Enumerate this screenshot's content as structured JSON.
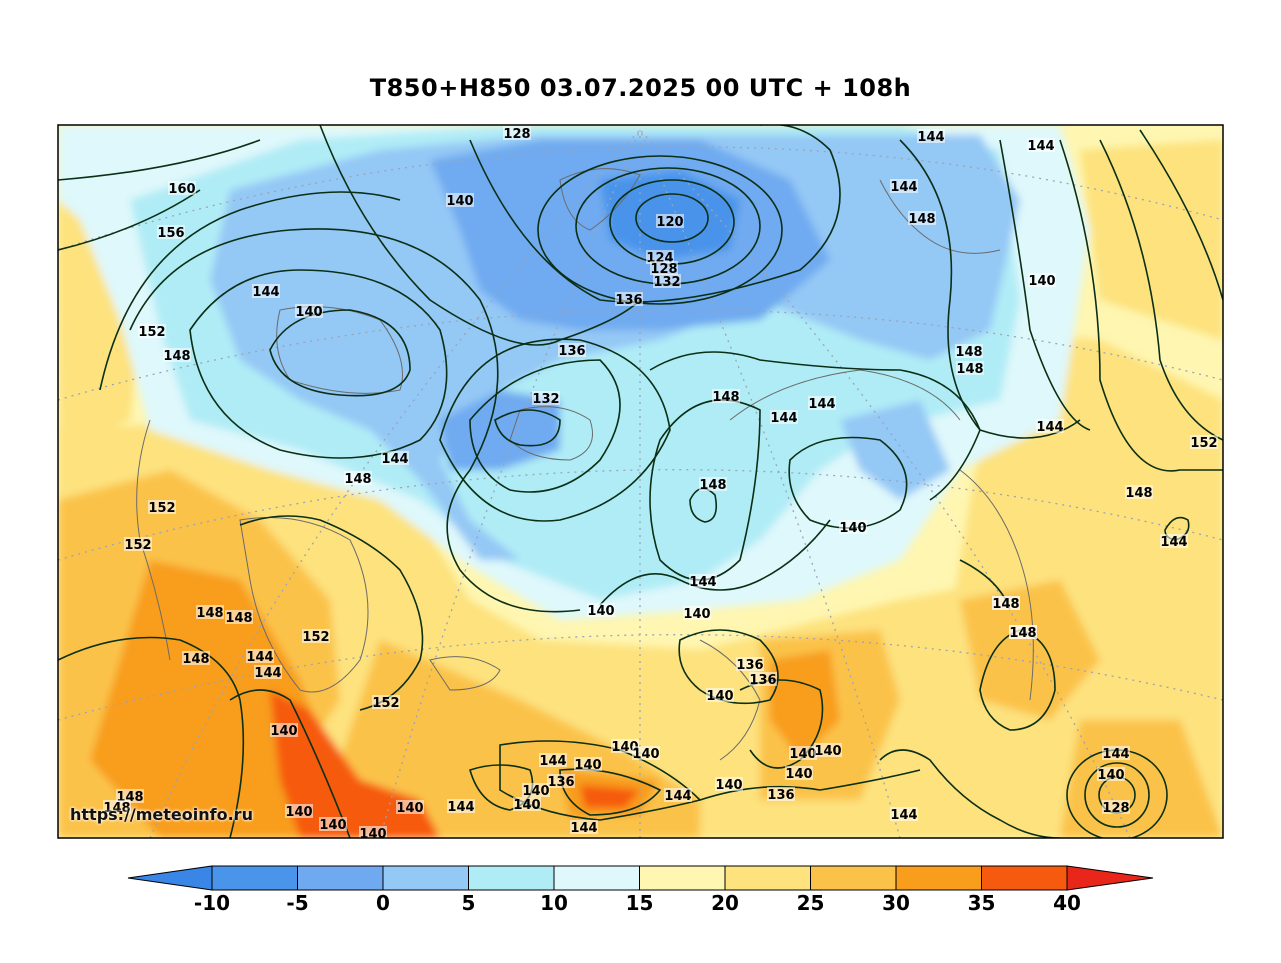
{
  "title": "T850+H850 03.07.2025 00 UTC + 108h",
  "watermark": "https://meteoinfo.ru",
  "colorbar": {
    "ticks": [
      "-10",
      "-5",
      "0",
      "5",
      "10",
      "15",
      "20",
      "25",
      "30",
      "35",
      "40"
    ],
    "colors": [
      "#4a94ea",
      "#6faaf0",
      "#94c8f5",
      "#b0ecf6",
      "#dff8fb",
      "#fef6b1",
      "#fde27e",
      "#fbc24a",
      "#f89d1c",
      "#f65a0f",
      "#ee2a12"
    ],
    "under_color": "#3a86e6",
    "over_color": "#e8261a"
  },
  "colors": {
    "contour": "#0a2f15",
    "coast": "#6b6b6b",
    "grid": "#9aa4b8"
  },
  "contour_labels": [
    {
      "text": "128"
    },
    {
      "text": "160"
    },
    {
      "text": "156"
    },
    {
      "text": "140"
    },
    {
      "text": "144"
    },
    {
      "text": "120"
    },
    {
      "text": "124"
    },
    {
      "text": "128"
    },
    {
      "text": "132"
    },
    {
      "text": "136"
    },
    {
      "text": "144"
    },
    {
      "text": "144"
    },
    {
      "text": "148"
    },
    {
      "text": "140"
    },
    {
      "text": "144"
    },
    {
      "text": "140"
    },
    {
      "text": "152"
    },
    {
      "text": "148"
    },
    {
      "text": "136"
    },
    {
      "text": "132"
    },
    {
      "text": "148"
    },
    {
      "text": "144"
    },
    {
      "text": "144"
    },
    {
      "text": "148"
    },
    {
      "text": "148"
    },
    {
      "text": "144"
    },
    {
      "text": "152"
    },
    {
      "text": "144"
    },
    {
      "text": "148"
    },
    {
      "text": "152"
    },
    {
      "text": "152"
    },
    {
      "text": "148"
    },
    {
      "text": "148"
    },
    {
      "text": "140"
    },
    {
      "text": "148"
    },
    {
      "text": "144"
    },
    {
      "text": "148"
    },
    {
      "text": "152"
    },
    {
      "text": "148"
    },
    {
      "text": "144"
    },
    {
      "text": "144"
    },
    {
      "text": "140"
    },
    {
      "text": "140"
    },
    {
      "text": "136"
    },
    {
      "text": "136"
    },
    {
      "text": "148"
    },
    {
      "text": "148"
    },
    {
      "text": "152"
    },
    {
      "text": "140"
    },
    {
      "text": "144"
    },
    {
      "text": "140"
    },
    {
      "text": "140"
    },
    {
      "text": "140"
    },
    {
      "text": "144"
    },
    {
      "text": "136"
    },
    {
      "text": "140"
    },
    {
      "text": "140"
    },
    {
      "text": "140"
    },
    {
      "text": "140"
    },
    {
      "text": "144"
    },
    {
      "text": "148"
    },
    {
      "text": "140"
    },
    {
      "text": "140"
    },
    {
      "text": "140"
    },
    {
      "text": "144"
    },
    {
      "text": "144"
    },
    {
      "text": "140"
    },
    {
      "text": "136"
    },
    {
      "text": "128"
    },
    {
      "text": "148"
    },
    {
      "text": "148"
    },
    {
      "text": "140"
    },
    {
      "text": "140"
    },
    {
      "text": "144"
    },
    {
      "text": "148"
    },
    {
      "text": "144"
    },
    {
      "text": "140"
    },
    {
      "text": "140"
    }
  ]
}
